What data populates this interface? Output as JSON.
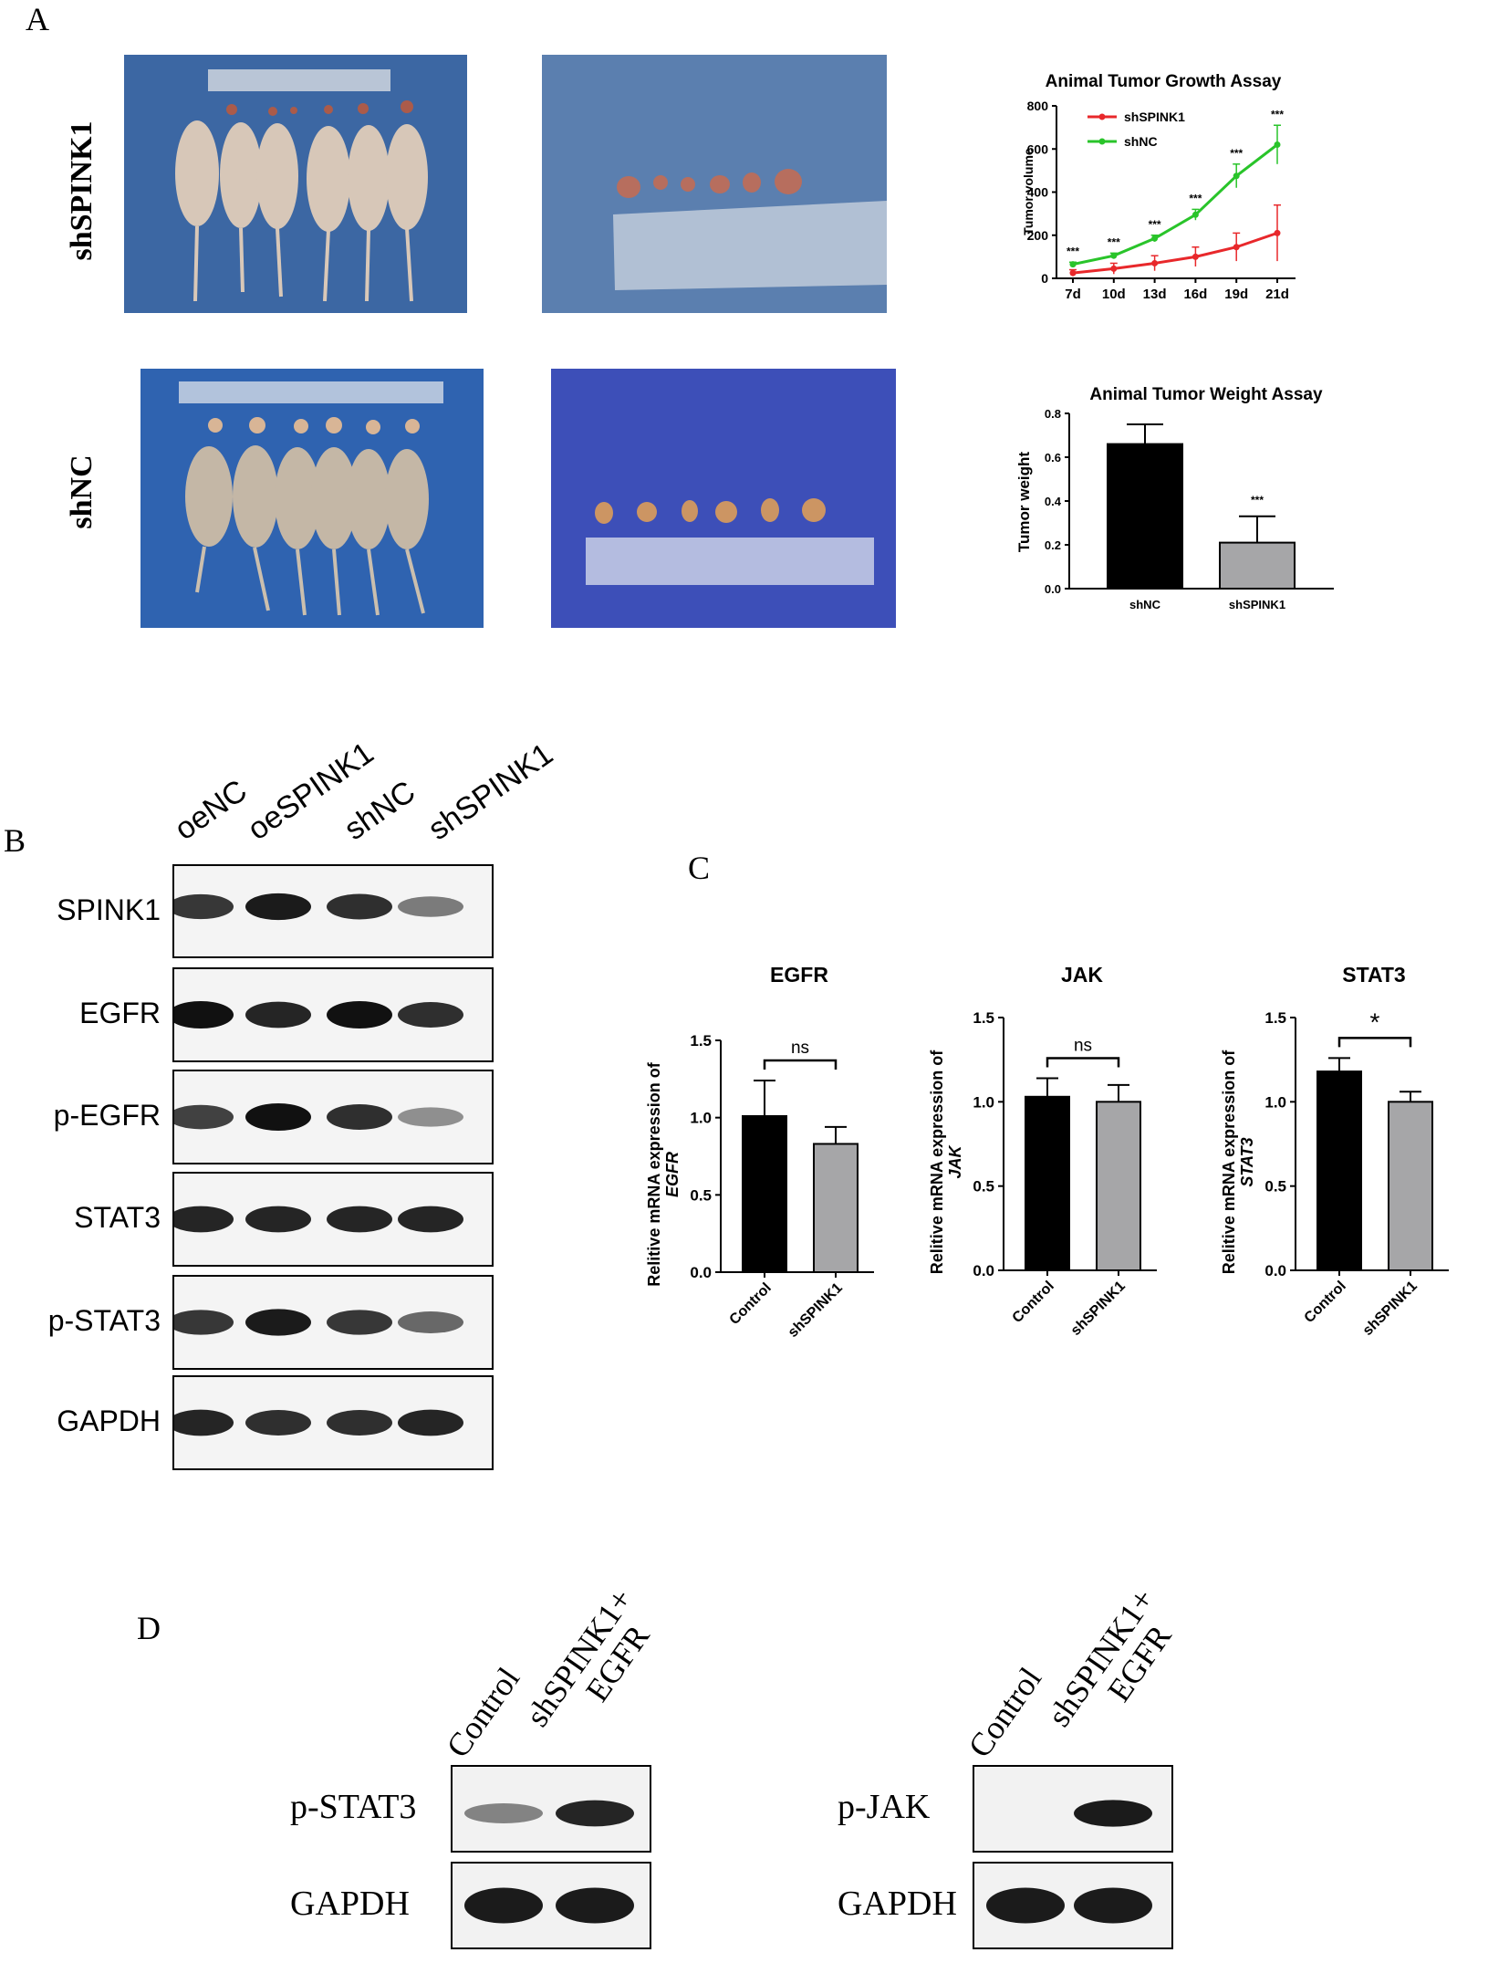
{
  "panels": {
    "A": "A",
    "B": "B",
    "C": "C",
    "D": "D"
  },
  "panel_a": {
    "row_labels": [
      "shSPINK1",
      "shNC"
    ]
  },
  "panel_b": {
    "lanes": [
      "oeNC",
      "oeSPINK1",
      "shNC",
      "shSPINK1"
    ],
    "rows": [
      {
        "label": "SPINK1",
        "intensities": [
          0.8,
          0.95,
          0.85,
          0.45
        ]
      },
      {
        "label": "EGFR",
        "intensities": [
          1.0,
          0.9,
          1.0,
          0.85
        ]
      },
      {
        "label": "p-EGFR",
        "intensities": [
          0.75,
          1.0,
          0.85,
          0.35
        ]
      },
      {
        "label": "STAT3",
        "intensities": [
          0.9,
          0.9,
          0.9,
          0.9
        ]
      },
      {
        "label": "p-STAT3",
        "intensities": [
          0.8,
          0.95,
          0.8,
          0.55
        ]
      },
      {
        "label": "GAPDH",
        "intensities": [
          0.9,
          0.85,
          0.85,
          0.9
        ]
      }
    ]
  },
  "panel_d": {
    "left": {
      "lanes": [
        "Control",
        "shSPINK1+",
        "EGFR"
      ],
      "rows": [
        {
          "label": "p-STAT3",
          "intensities": [
            0.4,
            0.9
          ]
        },
        {
          "label": "GAPDH",
          "intensities": [
            0.95,
            0.95
          ]
        }
      ]
    },
    "right": {
      "lanes": [
        "Control",
        "shSPINK1+",
        "EGFR"
      ],
      "rows": [
        {
          "label": "p-JAK",
          "intensities": [
            0.0,
            0.95
          ]
        },
        {
          "label": "GAPDH",
          "intensities": [
            0.95,
            0.95
          ]
        }
      ]
    }
  },
  "colors": {
    "shSPINK1_line": "#e8282b",
    "shNC_line": "#29c42a",
    "bar_control": "#000000",
    "bar_sh": "#a6a6a8"
  },
  "chart_data": [
    {
      "type": "line",
      "title": "Animal Tumor Growth Assay",
      "ylabel": "Tumor volume",
      "x": [
        "7d",
        "10d",
        "13d",
        "16d",
        "19d",
        "21d"
      ],
      "ylim": [
        0,
        800
      ],
      "yticks": [
        "0",
        "200",
        "400",
        "600",
        "800"
      ],
      "series": [
        {
          "name": "shSPINK1",
          "values": [
            25,
            45,
            70,
            100,
            145,
            210
          ],
          "errors": [
            15,
            25,
            35,
            45,
            65,
            130
          ]
        },
        {
          "name": "shNC",
          "values": [
            65,
            105,
            185,
            295,
            475,
            620
          ],
          "errors": [
            10,
            12,
            15,
            25,
            55,
            90
          ]
        }
      ],
      "annotations": [
        "***",
        "***",
        "***",
        "***",
        "***",
        "***"
      ],
      "legend": "top-left"
    },
    {
      "type": "bar",
      "title": "Animal Tumor Weight Assay",
      "ylabel": "Tumor weight",
      "categories": [
        "shNC",
        "shSPINK1"
      ],
      "values": [
        0.66,
        0.21
      ],
      "errors": [
        0.09,
        0.12
      ],
      "ylim": [
        0,
        0.8
      ],
      "yticks": [
        "0.0",
        "0.2",
        "0.4",
        "0.6",
        "0.8"
      ],
      "annotation": "***"
    },
    {
      "type": "bar",
      "title": "EGFR",
      "ylabel_line1": "Relitive mRNA expression of",
      "ylabel_line2": "EGFR",
      "categories": [
        "Control",
        "shSPINK1"
      ],
      "values": [
        1.01,
        0.83
      ],
      "errors": [
        0.23,
        0.11
      ],
      "ylim": [
        0,
        1.5
      ],
      "yticks": [
        "0.0",
        "0.5",
        "1.0",
        "1.5"
      ],
      "significance": "ns"
    },
    {
      "type": "bar",
      "title": "JAK",
      "ylabel_line1": "Relitive mRNA expression of",
      "ylabel_line2": "JAK",
      "categories": [
        "Control",
        "shSPINK1"
      ],
      "values": [
        1.03,
        1.0
      ],
      "errors": [
        0.11,
        0.1
      ],
      "ylim": [
        0,
        1.5
      ],
      "yticks": [
        "0.0",
        "0.5",
        "1.0",
        "1.5"
      ],
      "significance": "ns"
    },
    {
      "type": "bar",
      "title": "STAT3",
      "ylabel_line1": "Relitive mRNA expression of",
      "ylabel_line2": "STAT3",
      "categories": [
        "Control",
        "shSPINK1"
      ],
      "values": [
        1.18,
        1.0
      ],
      "errors": [
        0.08,
        0.06
      ],
      "ylim": [
        0,
        1.5
      ],
      "yticks": [
        "0.0",
        "0.5",
        "1.0",
        "1.5"
      ],
      "significance": "*"
    }
  ]
}
